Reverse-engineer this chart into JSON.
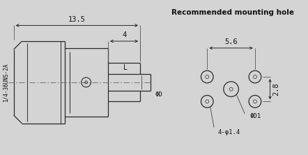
{
  "bg_color": "#d4d4d4",
  "line_color": "#2a2a2a",
  "text_color": "#111111",
  "title": "Recommended mounting hole",
  "label_135": "13.5",
  "label_4": "4",
  "label_l": "L",
  "label_phid": "ΦD",
  "label_thread": "1/4-36UNS-2A",
  "label_56": "5.6",
  "label_28": "2.8",
  "label_phid1": "ΦD1",
  "label_holes": "4-φ1.4",
  "fig_width": 4.42,
  "fig_height": 2.22,
  "dpi": 100
}
